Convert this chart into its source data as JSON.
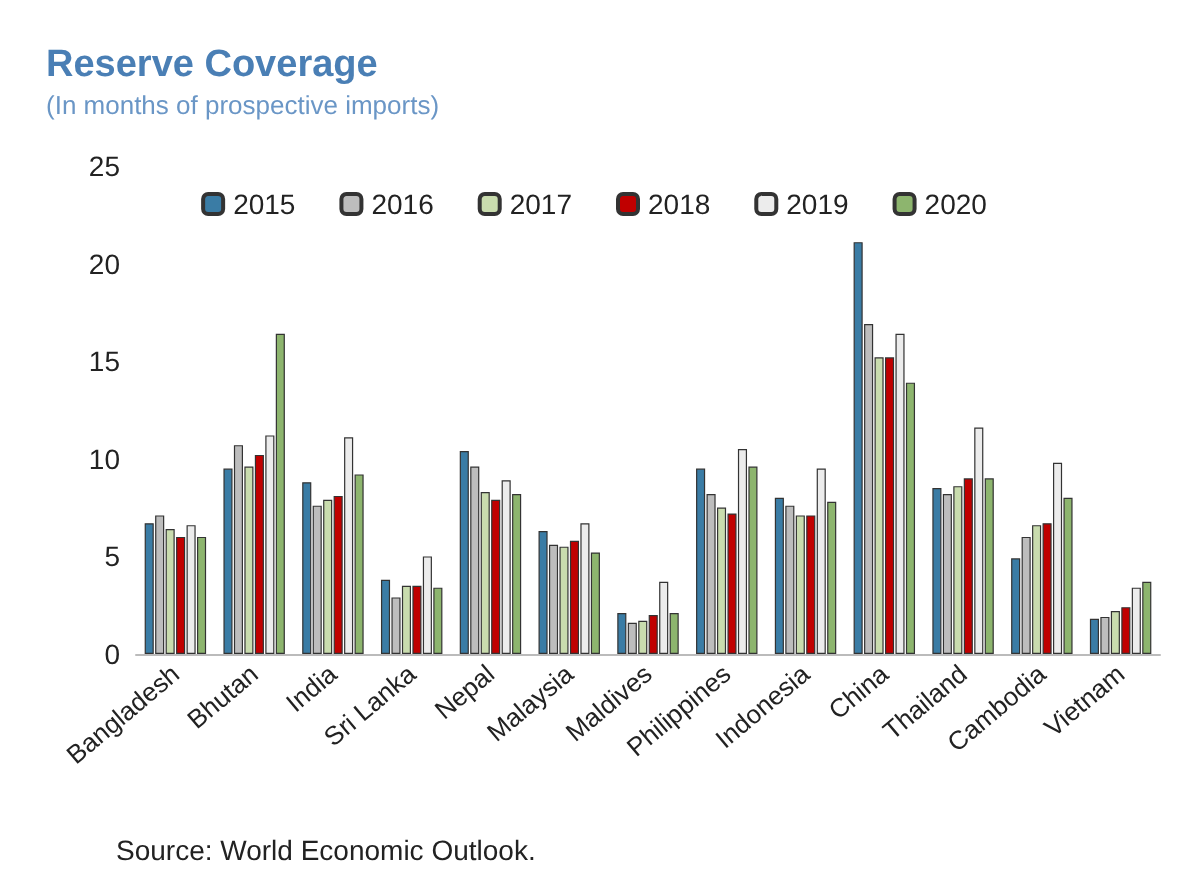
{
  "chart_data": {
    "type": "bar",
    "title": "Reserve Coverage",
    "subtitle": "(In months of prospective imports)",
    "categories": [
      "Bangladesh",
      "Bhutan",
      "India",
      "Sri Lanka",
      "Nepal",
      "Malaysia",
      "Maldives",
      "Philippines",
      "Indonesia",
      "China",
      "Thailand",
      "Cambodia",
      "Vietnam"
    ],
    "series": [
      {
        "name": "2015",
        "color": "#3a7ca5",
        "values": [
          6.7,
          9.5,
          8.8,
          3.8,
          10.4,
          6.3,
          2.1,
          9.5,
          8.0,
          21.1,
          8.5,
          4.9,
          1.8
        ]
      },
      {
        "name": "2016",
        "color": "#bdbdbd",
        "values": [
          7.1,
          10.7,
          7.6,
          2.9,
          9.6,
          5.6,
          1.6,
          8.2,
          7.6,
          16.9,
          8.2,
          6.0,
          1.9
        ]
      },
      {
        "name": "2017",
        "color": "#c9dcae",
        "values": [
          6.4,
          9.6,
          7.9,
          3.5,
          8.3,
          5.5,
          1.7,
          7.5,
          7.1,
          15.2,
          8.6,
          6.6,
          2.2
        ]
      },
      {
        "name": "2018",
        "color": "#c00000",
        "values": [
          6.0,
          10.2,
          8.1,
          3.5,
          7.9,
          5.8,
          2.0,
          7.2,
          7.1,
          15.2,
          9.0,
          6.7,
          2.4
        ]
      },
      {
        "name": "2019",
        "color": "#ececec",
        "values": [
          6.6,
          11.2,
          11.1,
          5.0,
          8.9,
          6.7,
          3.7,
          10.5,
          9.5,
          16.4,
          11.6,
          9.8,
          3.4
        ]
      },
      {
        "name": "2020",
        "color": "#8db56e",
        "values": [
          6.0,
          16.4,
          9.2,
          3.4,
          8.2,
          5.2,
          2.1,
          9.6,
          7.8,
          13.9,
          9.0,
          8.0,
          3.7
        ]
      }
    ],
    "ylim": [
      0,
      25
    ],
    "yticks": [
      0,
      5,
      10,
      15,
      20,
      25
    ],
    "grid": false,
    "legend": "top",
    "annotations": [
      "Source: World Economic Outlook."
    ]
  }
}
